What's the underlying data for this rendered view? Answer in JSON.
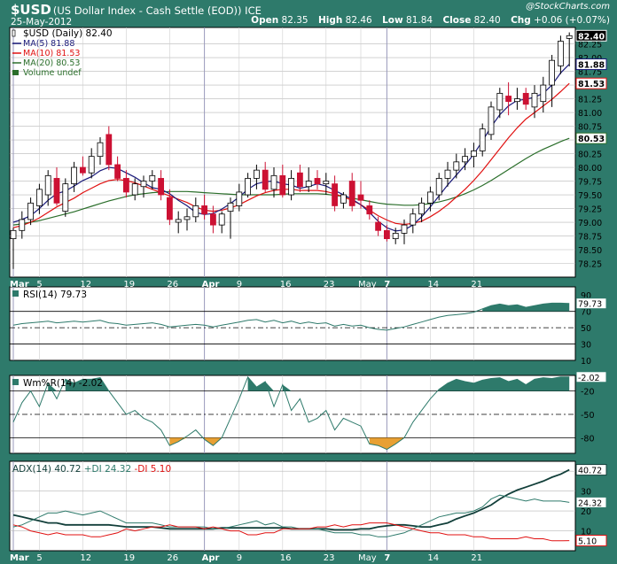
{
  "header": {
    "symbol": "$USD",
    "description": "(US Dollar Index - Cash Settle (EOD)) ICE",
    "date": "25-May-2012",
    "copyright": "@StockCharts.com",
    "ohlc": {
      "open_label": "Open",
      "open": "82.35",
      "high_label": "High",
      "high": "82.46",
      "low_label": "Low",
      "low": "81.84",
      "close_label": "Close",
      "close": "82.40",
      "chg_label": "Chg",
      "chg": "+0.06 (+0.07%)"
    }
  },
  "colors": {
    "frame": "#2e7a6b",
    "up": "#ffffff",
    "down": "#cc1133",
    "dark": "#000000",
    "ma5": "#1a1a7a",
    "ma10": "#e01010",
    "ma20": "#2a6e2a",
    "indicator_fill": "#2e7a6b",
    "oversold_fill": "#e8a033",
    "adx": "#123f3a",
    "plus_di": "#2e7a6b",
    "minus_di": "#e01010",
    "grid": "#b8b8b8"
  },
  "x_axis": {
    "date_labels": [
      "Mar",
      "5",
      "12",
      "19",
      "26",
      "Apr",
      "9",
      "16",
      "23",
      "May",
      "7",
      "14",
      "21"
    ]
  },
  "chart_data": [
    {
      "type": "candlestick",
      "title": "$USD (Daily) 82.40",
      "legend": [
        {
          "name": "$USD (Daily) 82.40",
          "kind": "candle"
        },
        {
          "name": "MA(5) 81.88",
          "kind": "ma5"
        },
        {
          "name": "MA(10) 81.53",
          "kind": "ma10"
        },
        {
          "name": "MA(20) 80.53",
          "kind": "ma20"
        },
        {
          "name": "Volume undef",
          "kind": "volume"
        }
      ],
      "y_ticks": [
        "78.25",
        "78.50",
        "78.75",
        "79.00",
        "79.25",
        "79.50",
        "79.75",
        "80.00",
        "80.25",
        "80.50",
        "80.75",
        "81.00",
        "81.25",
        "81.50",
        "81.75",
        "82.00",
        "82.25"
      ],
      "ylim": [
        78.0,
        82.55
      ],
      "price_tags": [
        {
          "label": "82.40",
          "value": 82.4,
          "style": "close"
        },
        {
          "label": "81.88",
          "value": 81.88,
          "style": "ma5"
        },
        {
          "label": "81.53",
          "value": 81.53,
          "style": "ma10"
        },
        {
          "label": "80.53",
          "value": 80.53,
          "style": "ma20"
        }
      ],
      "candles": [
        [
          78.7,
          78.9,
          78.15,
          78.85
        ],
        [
          78.85,
          79.2,
          78.7,
          79.05
        ],
        [
          79.05,
          79.45,
          78.95,
          79.35
        ],
        [
          79.3,
          79.7,
          79.15,
          79.6
        ],
        [
          79.5,
          79.95,
          79.3,
          79.85
        ],
        [
          79.8,
          80.0,
          79.3,
          79.35
        ],
        [
          79.2,
          79.8,
          79.1,
          79.7
        ],
        [
          79.7,
          80.1,
          79.55,
          80.0
        ],
        [
          80.0,
          80.2,
          79.85,
          79.9
        ],
        [
          79.9,
          80.35,
          79.8,
          80.2
        ],
        [
          80.2,
          80.55,
          80.05,
          80.45
        ],
        [
          80.6,
          80.75,
          79.95,
          80.05
        ],
        [
          80.05,
          80.2,
          79.75,
          79.8
        ],
        [
          79.8,
          79.95,
          79.45,
          79.55
        ],
        [
          79.5,
          79.8,
          79.4,
          79.7
        ],
        [
          79.65,
          79.85,
          79.45,
          79.75
        ],
        [
          79.75,
          79.95,
          79.6,
          79.85
        ],
        [
          79.8,
          79.95,
          79.4,
          79.5
        ],
        [
          79.45,
          79.6,
          78.95,
          79.05
        ],
        [
          79.0,
          79.2,
          78.8,
          79.05
        ],
        [
          79.05,
          79.25,
          78.85,
          79.1
        ],
        [
          79.1,
          79.45,
          79.0,
          79.3
        ],
        [
          79.3,
          79.5,
          79.05,
          79.15
        ],
        [
          79.15,
          79.3,
          78.8,
          78.95
        ],
        [
          78.95,
          79.2,
          78.8,
          79.15
        ],
        [
          79.2,
          79.45,
          78.7,
          79.35
        ],
        [
          79.3,
          79.7,
          79.2,
          79.55
        ],
        [
          79.5,
          79.9,
          79.45,
          79.8
        ],
        [
          79.8,
          80.05,
          79.6,
          79.95
        ],
        [
          79.95,
          80.1,
          79.55,
          79.6
        ],
        [
          79.6,
          80.0,
          79.45,
          79.85
        ],
        [
          79.85,
          80.05,
          79.45,
          79.5
        ],
        [
          79.5,
          79.95,
          79.4,
          79.8
        ],
        [
          79.9,
          80.05,
          79.55,
          79.65
        ],
        [
          79.65,
          80.0,
          79.55,
          79.75
        ],
        [
          79.8,
          79.95,
          79.6,
          79.7
        ],
        [
          79.7,
          79.9,
          79.5,
          79.75
        ],
        [
          79.7,
          79.85,
          79.2,
          79.3
        ],
        [
          79.35,
          79.55,
          79.25,
          79.5
        ],
        [
          79.75,
          79.9,
          79.2,
          79.3
        ],
        [
          79.5,
          79.75,
          79.25,
          79.4
        ],
        [
          79.3,
          79.4,
          79.05,
          79.15
        ],
        [
          79.0,
          79.1,
          78.75,
          78.85
        ],
        [
          78.85,
          78.95,
          78.65,
          78.7
        ],
        [
          78.7,
          78.9,
          78.6,
          78.8
        ],
        [
          78.8,
          79.05,
          78.6,
          78.95
        ],
        [
          78.95,
          79.25,
          78.8,
          79.15
        ],
        [
          79.15,
          79.45,
          79.0,
          79.35
        ],
        [
          79.35,
          79.65,
          79.2,
          79.55
        ],
        [
          79.5,
          79.9,
          79.4,
          79.8
        ],
        [
          79.8,
          80.1,
          79.65,
          79.95
        ],
        [
          79.95,
          80.25,
          79.8,
          80.1
        ],
        [
          80.1,
          80.35,
          79.95,
          80.2
        ],
        [
          80.2,
          80.45,
          80.0,
          80.3
        ],
        [
          80.3,
          80.8,
          80.2,
          80.7
        ],
        [
          80.6,
          81.2,
          80.5,
          81.1
        ],
        [
          81.05,
          81.45,
          80.9,
          81.35
        ],
        [
          81.3,
          81.55,
          80.95,
          81.2
        ],
        [
          81.2,
          81.45,
          81.05,
          81.25
        ],
        [
          81.35,
          81.45,
          81.05,
          81.15
        ],
        [
          81.1,
          81.5,
          80.9,
          81.35
        ],
        [
          81.2,
          81.65,
          81.0,
          81.5
        ],
        [
          81.5,
          82.05,
          81.1,
          81.95
        ],
        [
          81.85,
          82.4,
          81.7,
          82.3
        ],
        [
          82.35,
          82.46,
          81.84,
          82.4
        ]
      ],
      "ma5": [
        79.0,
        79.05,
        79.12,
        79.25,
        79.4,
        79.52,
        79.57,
        79.66,
        79.76,
        79.83,
        79.94,
        80.0,
        79.98,
        79.9,
        79.82,
        79.72,
        79.63,
        79.6,
        79.52,
        79.4,
        79.3,
        79.18,
        79.14,
        79.16,
        79.24,
        79.34,
        79.46,
        79.6,
        79.7,
        79.74,
        79.75,
        79.7,
        79.68,
        79.62,
        79.65,
        79.7,
        79.66,
        79.58,
        79.5,
        79.42,
        79.32,
        79.18,
        79.02,
        78.9,
        78.84,
        78.86,
        78.95,
        79.1,
        79.28,
        79.48,
        79.68,
        79.86,
        80.04,
        80.24,
        80.48,
        80.74,
        80.96,
        81.12,
        81.22,
        81.24,
        81.28,
        81.35,
        81.5,
        81.72,
        81.88
      ],
      "ma10": [
        78.9,
        78.94,
        79.0,
        79.08,
        79.18,
        79.28,
        79.36,
        79.44,
        79.54,
        79.62,
        79.7,
        79.76,
        79.78,
        79.76,
        79.72,
        79.66,
        79.6,
        79.54,
        79.48,
        79.42,
        79.36,
        79.28,
        79.22,
        79.2,
        79.22,
        79.26,
        79.32,
        79.4,
        79.48,
        79.54,
        79.58,
        79.6,
        79.6,
        79.58,
        79.58,
        79.58,
        79.56,
        79.52,
        79.46,
        79.4,
        79.32,
        79.22,
        79.12,
        79.04,
        78.98,
        78.96,
        78.98,
        79.02,
        79.1,
        79.2,
        79.32,
        79.46,
        79.6,
        79.76,
        79.94,
        80.14,
        80.34,
        80.54,
        80.72,
        80.88,
        81.0,
        81.12,
        81.24,
        81.38,
        81.53
      ],
      "ma20": [
        78.95,
        78.97,
        79.0,
        79.03,
        79.07,
        79.11,
        79.15,
        79.19,
        79.24,
        79.29,
        79.34,
        79.39,
        79.43,
        79.47,
        79.5,
        79.52,
        79.54,
        79.55,
        79.56,
        79.56,
        79.56,
        79.55,
        79.54,
        79.53,
        79.52,
        79.51,
        79.5,
        79.5,
        79.5,
        79.5,
        79.5,
        79.51,
        79.52,
        79.52,
        79.52,
        79.52,
        79.51,
        79.49,
        79.47,
        79.44,
        79.41,
        79.38,
        79.35,
        79.33,
        79.32,
        79.31,
        79.31,
        79.32,
        79.34,
        79.37,
        79.41,
        79.46,
        79.52,
        79.59,
        79.67,
        79.76,
        79.86,
        79.96,
        80.06,
        80.16,
        80.25,
        80.33,
        80.4,
        80.47,
        80.53
      ]
    },
    {
      "type": "line",
      "title": "RSI(14) 79.73",
      "ylim": [
        10,
        100
      ],
      "y_ticks": [
        "90",
        "70",
        "50",
        "30",
        "10"
      ],
      "ref_lines": [
        70,
        50,
        30
      ],
      "price_tag": "79.73",
      "values": [
        53,
        55,
        56,
        57,
        58,
        56,
        57,
        58,
        57,
        58,
        59,
        56,
        55,
        53,
        54,
        55,
        56,
        54,
        51,
        52,
        53,
        54,
        53,
        51,
        53,
        55,
        57,
        59,
        60,
        57,
        59,
        56,
        58,
        55,
        57,
        55,
        56,
        52,
        54,
        52,
        53,
        50,
        48,
        47,
        49,
        51,
        54,
        57,
        60,
        63,
        65,
        66,
        67,
        69,
        73,
        77,
        79,
        77,
        78,
        75,
        77,
        79,
        80,
        80,
        79.73
      ]
    },
    {
      "type": "line",
      "title": "Wm%R(14) -2.02",
      "ylim": [
        -100,
        0
      ],
      "y_ticks": [
        "-20",
        "-50",
        "-80"
      ],
      "ref_lines": [
        -20,
        -50,
        -80
      ],
      "price_tag": "-2.02",
      "values": [
        -60,
        -35,
        -20,
        -40,
        -10,
        -30,
        -5,
        -10,
        -5,
        -5,
        -3,
        -20,
        -35,
        -50,
        -45,
        -55,
        -60,
        -70,
        -90,
        -85,
        -78,
        -70,
        -82,
        -90,
        -80,
        -55,
        -30,
        -2,
        -15,
        -8,
        -40,
        -12,
        -45,
        -30,
        -60,
        -55,
        -45,
        -70,
        -55,
        -60,
        -65,
        -88,
        -90,
        -95,
        -88,
        -80,
        -60,
        -45,
        -30,
        -18,
        -10,
        -5,
        -8,
        -10,
        -6,
        -4,
        -3,
        -8,
        -5,
        -12,
        -5,
        -3,
        -4,
        -2,
        -2.02
      ]
    },
    {
      "type": "line",
      "title": "ADX(14) 40.72 +DI 24.32 -DI 5.10",
      "ylim": [
        0,
        45
      ],
      "y_ticks": [
        "40",
        "30",
        "20",
        "10"
      ],
      "series": [
        {
          "name": "ADX(14)",
          "tag": "40.72",
          "values": [
            18,
            17,
            16,
            15,
            14,
            14,
            13,
            13,
            13,
            13,
            13,
            13,
            12.5,
            12,
            12,
            12,
            12,
            11.5,
            11,
            11,
            11,
            11,
            11,
            11,
            11.5,
            11.5,
            11.5,
            11.5,
            11.5,
            11.5,
            11.5,
            11.5,
            11,
            11,
            11,
            11,
            11,
            10.5,
            10.5,
            10.5,
            11,
            11,
            12,
            12.5,
            13,
            13,
            12.5,
            12,
            12,
            13,
            14,
            16,
            17.5,
            19,
            21,
            23,
            26,
            28.5,
            30.5,
            32,
            33.5,
            35,
            37,
            38.5,
            40.72
          ]
        },
        {
          "name": "+DI",
          "tag": "24.32",
          "values": [
            12,
            13,
            15,
            17,
            19,
            19,
            20,
            19,
            18,
            19,
            20,
            18,
            16,
            14,
            14,
            14,
            14,
            13,
            12,
            12,
            12,
            12,
            12,
            11,
            11,
            12,
            13,
            14,
            15,
            13,
            14,
            12,
            12,
            11,
            11,
            11,
            10,
            9,
            9,
            9,
            8,
            8,
            7,
            7,
            8,
            9,
            11,
            13,
            15,
            17,
            18,
            19,
            19,
            20,
            22,
            26,
            28,
            27,
            26,
            25,
            26,
            25,
            25,
            25,
            24.32
          ]
        },
        {
          "name": "-DI",
          "tag": "5.10",
          "values": [
            13,
            12,
            10,
            9,
            8,
            9,
            8,
            8,
            8,
            7,
            7,
            8,
            9,
            11,
            10,
            11,
            12,
            12,
            13,
            12,
            12,
            12,
            11,
            12,
            11,
            10,
            10,
            8,
            8,
            9,
            9,
            11,
            11,
            11,
            11,
            12,
            12,
            13,
            12,
            13,
            13,
            14,
            14,
            14,
            13,
            12,
            11,
            10,
            9,
            9,
            8,
            8,
            8,
            7,
            7,
            6,
            6,
            6,
            6,
            7,
            6,
            6,
            5,
            5,
            5.1
          ]
        }
      ]
    }
  ]
}
